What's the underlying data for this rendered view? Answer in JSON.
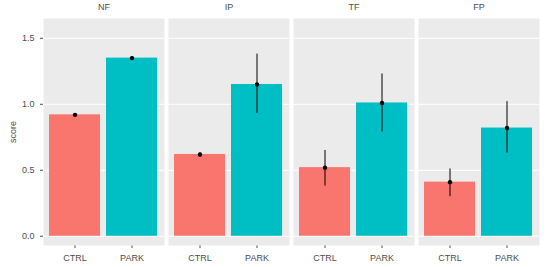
{
  "chart_data": {
    "type": "bar",
    "y_label": "score",
    "categories": [
      "CTRL",
      "PARK"
    ],
    "colors": [
      "#F8766D",
      "#00BFC4"
    ],
    "ylim": [
      -0.07,
      1.65
    ],
    "yticks": [
      {
        "value": 0,
        "label": "0.0"
      },
      {
        "value": 0.5,
        "label": "0.5"
      },
      {
        "value": 1,
        "label": "1.0"
      },
      {
        "value": 1.5,
        "label": "1.5"
      }
    ],
    "grid": true,
    "panels": [
      {
        "title": "NF",
        "values": [
          0.92,
          1.35
        ],
        "lower": [
          0.91,
          1.34
        ],
        "upper": [
          0.93,
          1.36
        ]
      },
      {
        "title": "IP",
        "values": [
          0.62,
          1.15
        ],
        "lower": [
          0.61,
          0.93
        ],
        "upper": [
          0.63,
          1.38
        ]
      },
      {
        "title": "TF",
        "values": [
          0.52,
          1.01
        ],
        "lower": [
          0.38,
          0.79
        ],
        "upper": [
          0.65,
          1.23
        ]
      },
      {
        "title": "FP",
        "values": [
          0.41,
          0.82
        ],
        "lower": [
          0.3,
          0.63
        ],
        "upper": [
          0.51,
          1.02
        ]
      }
    ]
  }
}
